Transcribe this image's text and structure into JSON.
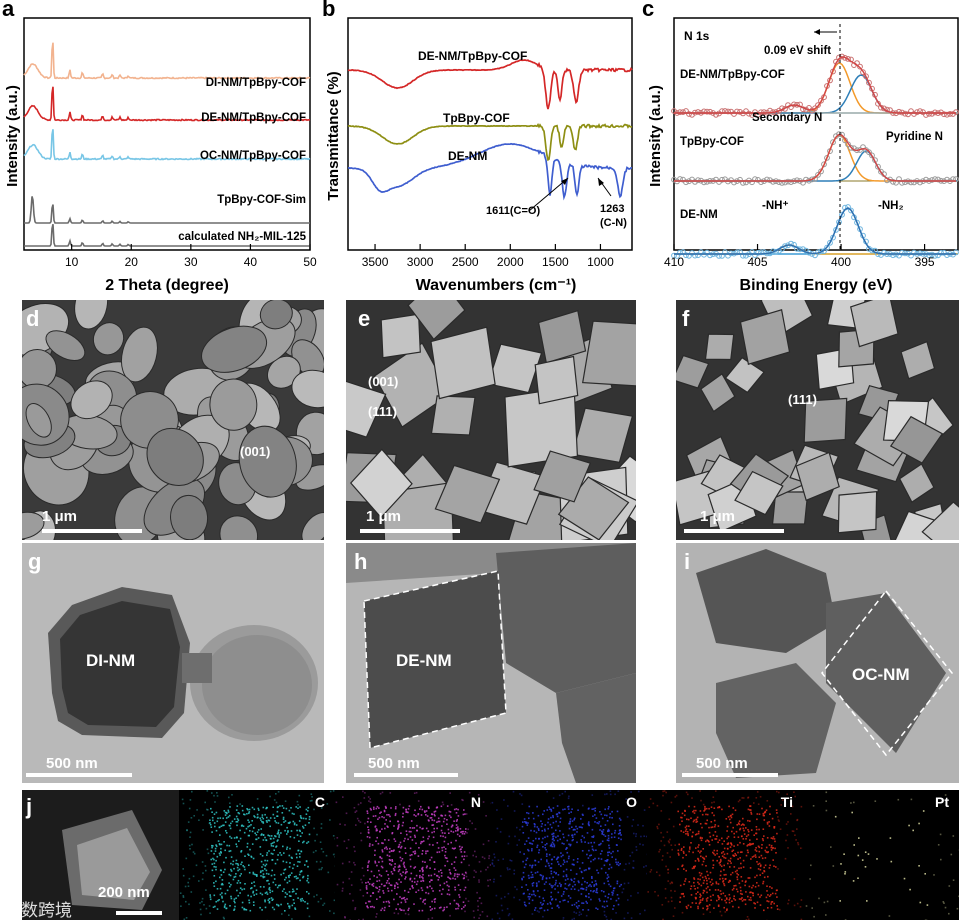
{
  "panels": {
    "a": {
      "label": "a",
      "ylabel": "Intensity (a.u.)",
      "xlabel": "2 Theta (degree)",
      "xticks": [
        "10",
        "20",
        "30",
        "40",
        "50"
      ],
      "traces": [
        {
          "name": "DI-NM/TpBpy-COF",
          "color": "#f2b38f"
        },
        {
          "name": "DE-NM/TpBpy-COF",
          "color": "#d42727"
        },
        {
          "name": "OC-NM/TpBpy-COF",
          "color": "#78c6e6"
        },
        {
          "name": "TpBpy-COF-Sim",
          "color": "#6b6b6b"
        },
        {
          "name": "calculated NH₂-MIL-125",
          "color": "#6b6b6b"
        }
      ]
    },
    "b": {
      "label": "b",
      "ylabel": "Transmittance (%)",
      "xlabel": "Wavenumbers (cm⁻¹)",
      "xticks": [
        "3500",
        "3000",
        "2500",
        "2000",
        "1500",
        "1000"
      ],
      "traces": [
        {
          "name": "DE-NM/TpBpy-COF",
          "color": "#d42727"
        },
        {
          "name": "TpBpy-COF",
          "color": "#8e8f14"
        },
        {
          "name": "DE-NM",
          "color": "#3f5ecf"
        }
      ],
      "annotations": [
        "1611(C=O)",
        "1263",
        "(C-N)"
      ]
    },
    "c": {
      "label": "c",
      "ylabel": "Intensity (a.u.)",
      "xlabel": "Binding Energy (eV)",
      "xticks": [
        "410",
        "405",
        "400",
        "395"
      ],
      "title": "N 1s",
      "annotations": [
        "0.09 eV shift",
        "Secondary N",
        "Pyridine N",
        "-NH⁺",
        "-NH₂"
      ],
      "traces": [
        {
          "name": "DE-NM/TpBpy-COF"
        },
        {
          "name": "TpBpy-COF"
        },
        {
          "name": "DE-NM"
        }
      ]
    },
    "sem": [
      {
        "label": "d",
        "facet": "(001)",
        "scale": "1 μm"
      },
      {
        "label": "e",
        "facet1": "(001)",
        "facet2": "(111)",
        "scale": "1 μm"
      },
      {
        "label": "f",
        "facet": "(111)",
        "scale": "1 μm"
      }
    ],
    "tem": [
      {
        "label": "g",
        "name": "DI-NM",
        "scale": "500 nm"
      },
      {
        "label": "h",
        "name": "DE-NM",
        "scale": "500 nm"
      },
      {
        "label": "i",
        "name": "OC-NM",
        "scale": "500 nm"
      }
    ],
    "j": {
      "label": "j",
      "scale": "200 nm",
      "maps": [
        {
          "element": "C",
          "color": "#2fc7c7"
        },
        {
          "element": "N",
          "color": "#c43ec4"
        },
        {
          "element": "O",
          "color": "#2c3cdc"
        },
        {
          "element": "Ti",
          "color": "#e02a1a"
        },
        {
          "element": "Pt",
          "color": "#d8d8a0"
        }
      ]
    }
  },
  "watermark": "大数跨境"
}
